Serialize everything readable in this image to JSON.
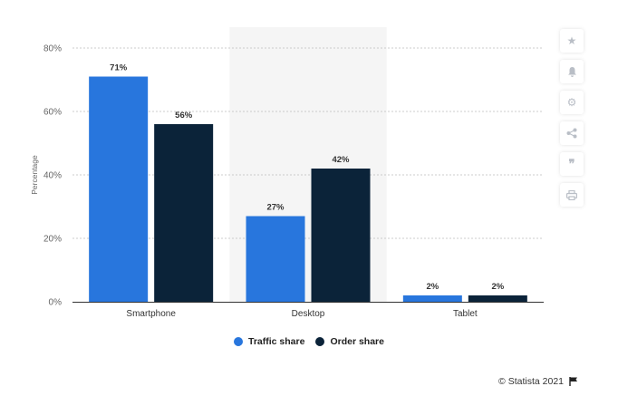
{
  "chart_data": {
    "type": "bar",
    "categories": [
      "Smartphone",
      "Desktop",
      "Tablet"
    ],
    "series": [
      {
        "name": "Traffic share",
        "values": [
          71,
          27,
          2
        ],
        "color": "#2876dd"
      },
      {
        "name": "Order share",
        "values": [
          56,
          42,
          2
        ],
        "color": "#0b2339"
      }
    ],
    "value_suffix": "%",
    "ylabel": "Percentage",
    "ylim": [
      0,
      80
    ],
    "yticks": [
      "0%",
      "20%",
      "40%",
      "60%",
      "80%"
    ],
    "grid": true,
    "highlight_category": "Desktop",
    "legend_position": "bottom"
  },
  "toolbar": {
    "icons": [
      "star-icon",
      "bell-icon",
      "gear-icon",
      "share-icon",
      "quote-icon",
      "print-icon"
    ]
  },
  "footer": {
    "credit": "© Statista 2021"
  }
}
